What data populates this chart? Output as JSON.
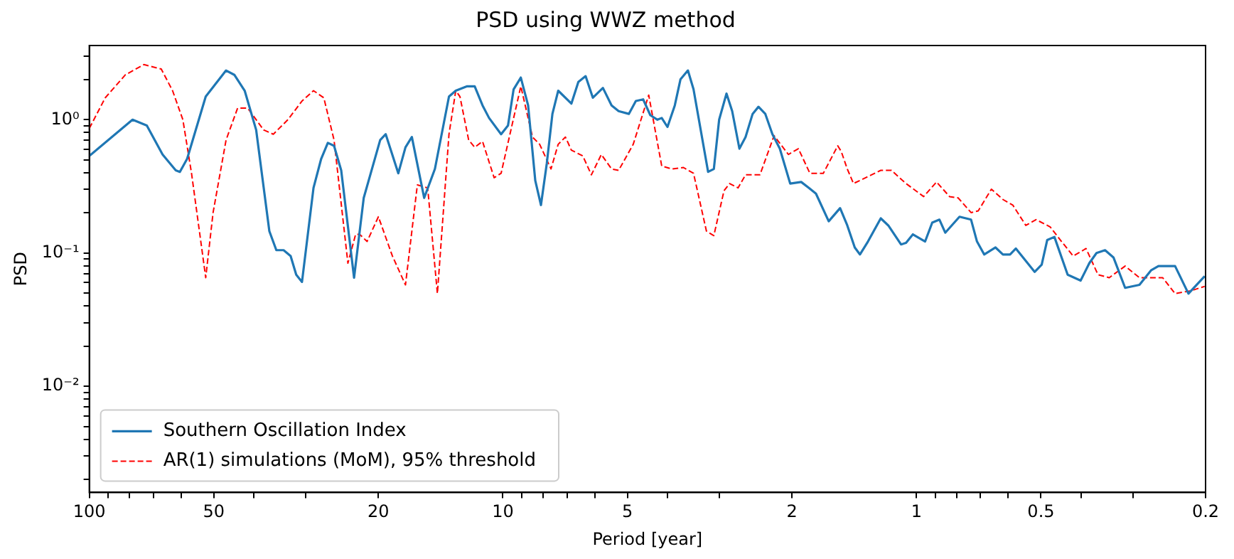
{
  "chart_data": {
    "type": "line",
    "title": "PSD using WWZ method",
    "xlabel": "Period [year]",
    "ylabel": "PSD",
    "log": "xy",
    "grid": false,
    "legend": "bottom left",
    "marker": "none",
    "xlim": [
      100,
      0.2
    ],
    "xticks": [
      100,
      {
        "value": 90,
        "label": null
      },
      {
        "value": 80,
        "label": null
      },
      {
        "value": 70,
        "label": null
      },
      {
        "value": 60,
        "label": null
      },
      50,
      {
        "value": 40,
        "label": null
      },
      {
        "value": 30,
        "label": null
      },
      20,
      10,
      {
        "value": 9,
        "label": null
      },
      {
        "value": 8,
        "label": null
      },
      {
        "value": 7,
        "label": null
      },
      {
        "value": 6,
        "label": null
      },
      5,
      {
        "value": 4,
        "label": null
      },
      {
        "value": 3,
        "label": null
      },
      2,
      1,
      {
        "value": 0.9,
        "label": null
      },
      {
        "value": 0.8,
        "label": null
      },
      {
        "value": 0.7,
        "label": null
      },
      {
        "value": 0.6,
        "label": null
      },
      0.5,
      {
        "value": 0.4,
        "label": null
      },
      {
        "value": 0.3,
        "label": null
      },
      0.2
    ],
    "ylim": [
      0.0016,
      3.6
    ],
    "yticks": [
      {
        "value": 0.002,
        "label": null
      },
      {
        "value": 0.003,
        "label": null
      },
      {
        "value": 0.004,
        "label": null
      },
      {
        "value": 0.005,
        "label": null
      },
      {
        "value": 0.006,
        "label": null
      },
      {
        "value": 0.007,
        "label": null
      },
      {
        "value": 0.008,
        "label": null
      },
      {
        "value": 0.009,
        "label": null
      },
      {
        "value": 0.01,
        "label": "10⁻²"
      },
      {
        "value": 0.02,
        "label": null
      },
      {
        "value": 0.03,
        "label": null
      },
      {
        "value": 0.04,
        "label": null
      },
      {
        "value": 0.05,
        "label": null
      },
      {
        "value": 0.06,
        "label": null
      },
      {
        "value": 0.07,
        "label": null
      },
      {
        "value": 0.08,
        "label": null
      },
      {
        "value": 0.09,
        "label": null
      },
      {
        "value": 0.1,
        "label": "10⁻¹"
      },
      {
        "value": 0.2,
        "label": null
      },
      {
        "value": 0.3,
        "label": null
      },
      {
        "value": 0.4,
        "label": null
      },
      {
        "value": 0.5,
        "label": null
      },
      {
        "value": 0.6,
        "label": null
      },
      {
        "value": 0.7,
        "label": null
      },
      {
        "value": 0.8,
        "label": null
      },
      {
        "value": 0.9,
        "label": null
      },
      {
        "value": 1,
        "label": "10⁰"
      },
      {
        "value": 2,
        "label": null
      },
      {
        "value": 3,
        "label": null
      }
    ],
    "series": [
      {
        "name": "Southern Oscillation Index",
        "color": "#1f77b4",
        "line_style": "solid",
        "x": [
          100,
          78.6,
          72.6,
          66.5,
          61.8,
          60.4,
          58.0,
          52.3,
          46.7,
          44.6,
          42.1,
          39.5,
          36.7,
          35.3,
          33.9,
          32.6,
          31.6,
          30.6,
          28.7,
          27.5,
          26.5,
          25.6,
          24.6,
          22.9,
          21.7,
          19.8,
          19.2,
          17.9,
          17.2,
          16.6,
          15.5,
          14.6,
          13.5,
          13.0,
          12.2,
          11.7,
          11.2,
          10.8,
          10.1,
          9.72,
          9.42,
          9.05,
          8.69,
          8.35,
          8.09,
          7.83,
          7.59,
          7.35,
          6.83,
          6.57,
          6.31,
          6.06,
          5.73,
          5.46,
          5.25,
          4.96,
          4.77,
          4.58,
          4.4,
          4.23,
          4.13,
          4.0,
          3.84,
          3.72,
          3.57,
          3.46,
          3.19,
          3.09,
          3.0,
          2.88,
          2.79,
          2.68,
          2.59,
          2.49,
          2.41,
          2.32,
          2.23,
          2.14,
          2.02,
          1.9,
          1.82,
          1.75,
          1.63,
          1.53,
          1.47,
          1.41,
          1.37,
          1.31,
          1.22,
          1.17,
          1.09,
          1.06,
          1.02,
          0.953,
          0.916,
          0.88,
          0.852,
          0.787,
          0.738,
          0.714,
          0.686,
          0.644,
          0.618,
          0.594,
          0.575,
          0.518,
          0.498,
          0.483,
          0.464,
          0.431,
          0.401,
          0.382,
          0.367,
          0.35,
          0.334,
          0.313,
          0.289,
          0.271,
          0.26,
          0.237,
          0.22,
          0.201
        ],
        "values": [
          0.535,
          1.0,
          0.905,
          0.548,
          0.417,
          0.406,
          0.509,
          1.49,
          2.34,
          2.17,
          1.65,
          0.839,
          0.146,
          0.105,
          0.105,
          0.095,
          0.0687,
          0.0607,
          0.308,
          0.509,
          0.67,
          0.637,
          0.417,
          0.0653,
          0.259,
          0.704,
          0.778,
          0.396,
          0.621,
          0.741,
          0.259,
          0.427,
          1.49,
          1.65,
          1.78,
          1.78,
          1.28,
          1.03,
          0.778,
          0.905,
          1.69,
          2.07,
          1.28,
          0.349,
          0.229,
          0.472,
          1.105,
          1.65,
          1.32,
          1.92,
          2.12,
          1.46,
          1.73,
          1.28,
          1.16,
          1.105,
          1.38,
          1.42,
          1.08,
          1.0,
          1.03,
          0.882,
          1.28,
          2.01,
          2.34,
          1.69,
          0.406,
          0.427,
          1.0,
          1.57,
          1.16,
          0.606,
          0.741,
          1.105,
          1.25,
          1.105,
          0.778,
          0.606,
          0.332,
          0.341,
          0.308,
          0.279,
          0.173,
          0.217,
          0.161,
          0.11,
          0.0975,
          0.122,
          0.182,
          0.161,
          0.116,
          0.119,
          0.138,
          0.122,
          0.169,
          0.178,
          0.142,
          0.187,
          0.178,
          0.122,
          0.0975,
          0.11,
          0.0975,
          0.0975,
          0.108,
          0.0722,
          0.0818,
          0.125,
          0.132,
          0.0687,
          0.0621,
          0.0839,
          0.1,
          0.105,
          0.0927,
          0.0548,
          0.0577,
          0.0741,
          0.0798,
          0.0798,
          0.0496,
          0.067
        ]
      },
      {
        "name": "AR(1) simulations (MoM), 95% threshold",
        "color": "#ff0000",
        "line_style": "dashed",
        "x": [
          100,
          91.5,
          81.8,
          73.8,
          67.0,
          62.9,
          59.4,
          56.6,
          52.3,
          50.2,
          46.7,
          43.8,
          41.4,
          37.9,
          35.9,
          33.1,
          30.6,
          28.7,
          27.1,
          25.6,
          23.7,
          22.7,
          22.2,
          21.3,
          20.0,
          18.5,
          17.2,
          16.1,
          15.2,
          14.4,
          13.5,
          13.0,
          12.7,
          12.1,
          11.7,
          11.2,
          10.5,
          10.1,
          9.05,
          8.48,
          8.15,
          7.65,
          7.35,
          7.06,
          6.83,
          6.41,
          6.11,
          5.78,
          5.46,
          5.25,
          4.84,
          4.44,
          4.13,
          3.9,
          3.66,
          3.46,
          3.22,
          3.09,
          2.92,
          2.83,
          2.7,
          2.59,
          2.39,
          2.21,
          2.04,
          1.93,
          1.81,
          1.68,
          1.55,
          1.52,
          1.47,
          1.42,
          1.22,
          1.15,
          1.06,
          0.961,
          0.894,
          0.832,
          0.793,
          0.738,
          0.709,
          0.659,
          0.618,
          0.585,
          0.544,
          0.514,
          0.475,
          0.446,
          0.418,
          0.389,
          0.364,
          0.342,
          0.313,
          0.289,
          0.254,
          0.237,
          0.217,
          0.201
        ],
        "values": [
          0.86,
          1.46,
          2.17,
          2.59,
          2.4,
          1.65,
          1.0,
          0.396,
          0.0653,
          0.201,
          0.704,
          1.22,
          1.22,
          0.839,
          0.778,
          1.0,
          1.38,
          1.65,
          1.46,
          0.704,
          0.0839,
          0.138,
          0.138,
          0.122,
          0.187,
          0.095,
          0.0577,
          0.324,
          0.308,
          0.0496,
          0.778,
          1.65,
          1.49,
          0.704,
          0.621,
          0.687,
          0.367,
          0.396,
          1.78,
          0.741,
          0.654,
          0.427,
          0.654,
          0.741,
          0.591,
          0.535,
          0.386,
          0.548,
          0.427,
          0.417,
          0.654,
          1.53,
          0.449,
          0.427,
          0.438,
          0.396,
          0.146,
          0.135,
          0.293,
          0.332,
          0.308,
          0.386,
          0.386,
          0.759,
          0.548,
          0.606,
          0.396,
          0.396,
          0.637,
          0.577,
          0.427,
          0.332,
          0.417,
          0.417,
          0.332,
          0.265,
          0.341,
          0.265,
          0.259,
          0.201,
          0.207,
          0.301,
          0.252,
          0.229,
          0.161,
          0.178,
          0.157,
          0.122,
          0.095,
          0.108,
          0.0687,
          0.0653,
          0.0798,
          0.0653,
          0.0653,
          0.0496,
          0.0521,
          0.0562
        ]
      }
    ]
  }
}
